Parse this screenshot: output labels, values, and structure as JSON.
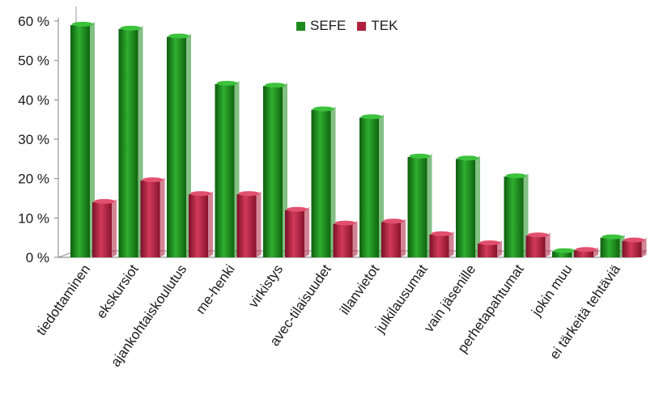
{
  "chart_data": {
    "type": "bar",
    "title": "",
    "xlabel": "",
    "ylabel": "",
    "ylim": [
      0,
      60
    ],
    "yticks": [
      "0 %",
      "10 %",
      "20 %",
      "30 %",
      "40 %",
      "50 %",
      "60 %"
    ],
    "grid": false,
    "legend_position": "top-center",
    "categories": [
      "tiedottaminen",
      "ekskursiot",
      "ajankohtaiskoulutus",
      "me-henki",
      "virkistys",
      "avec-tilaisuudet",
      "illanvietot",
      "julkilausumat",
      "vain jäsenille",
      "perhetapahtumat",
      "jokin muu",
      "ei tärkeitä tehtäviä"
    ],
    "series": [
      {
        "name": "SEFE",
        "color": "#1f8a1f",
        "values": [
          59,
          58,
          56,
          44,
          43.5,
          37.5,
          35.5,
          25.5,
          25,
          20.5,
          1.5,
          5
        ]
      },
      {
        "name": "TEK",
        "color": "#b0203e",
        "values": [
          14,
          19.5,
          16,
          16,
          12,
          8.5,
          9,
          5.8,
          3.5,
          5.5,
          1.8,
          4.2
        ]
      }
    ]
  }
}
